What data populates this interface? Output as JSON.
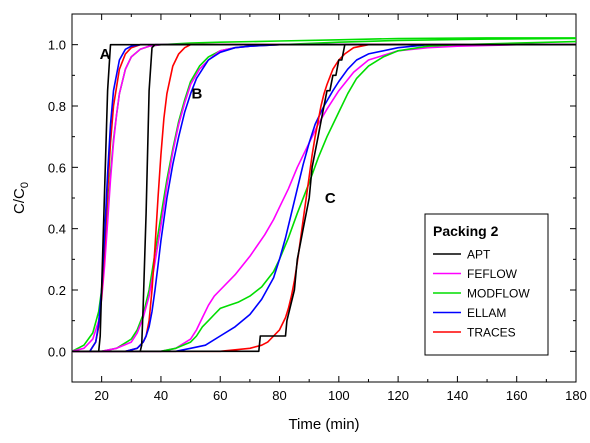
{
  "chart_data": {
    "type": "line",
    "xlabel": "Time (min)",
    "ylabel_main": "C/C",
    "ylabel_sub": "0",
    "xlim": [
      10,
      180
    ],
    "ylim": [
      -0.1,
      1.1
    ],
    "x_ticks": [
      20,
      40,
      60,
      80,
      100,
      120,
      140,
      160,
      180
    ],
    "y_ticks": [
      0.0,
      0.2,
      0.4,
      0.6,
      0.8,
      1.0
    ],
    "y_tick_labels": [
      "0.0",
      "0.2",
      "0.4",
      "0.6",
      "0.8",
      "1.0"
    ],
    "grid": false,
    "legend": {
      "title": "Packing 2",
      "placement": "bottom-right",
      "entries": [
        "APT",
        "FEFLOW",
        "MODFLOW",
        "ELLAM",
        "TRACES"
      ]
    },
    "annotations": [
      {
        "text": "A",
        "x": 21,
        "y": 0.97
      },
      {
        "text": "B",
        "x": 52,
        "y": 0.84
      },
      {
        "text": "C",
        "x": 97,
        "y": 0.5
      }
    ],
    "colors": {
      "APT": "#000000",
      "FEFLOW": "#ff00ff",
      "MODFLOW": "#00dd00",
      "ELLAM": "#0000ff",
      "TRACES": "#ff0000"
    },
    "series": [
      {
        "name": "MODFLOW",
        "group": "A",
        "x": [
          10,
          14,
          17,
          19,
          20,
          21,
          22,
          23,
          24,
          25,
          26,
          28,
          30,
          33,
          36,
          40,
          50,
          60,
          80,
          100,
          120,
          150,
          180
        ],
        "y": [
          0,
          0.02,
          0.06,
          0.13,
          0.2,
          0.32,
          0.45,
          0.58,
          0.69,
          0.77,
          0.84,
          0.92,
          0.96,
          0.985,
          0.995,
          1.0,
          1.005,
          1.008,
          1.012,
          1.016,
          1.02,
          1.022,
          1.022
        ]
      },
      {
        "name": "FEFLOW",
        "group": "A",
        "x": [
          10,
          14,
          17,
          19,
          20,
          21,
          22,
          23,
          24,
          25,
          26,
          28,
          30,
          33,
          36,
          40,
          180
        ],
        "y": [
          0,
          0.01,
          0.04,
          0.1,
          0.17,
          0.28,
          0.42,
          0.56,
          0.68,
          0.77,
          0.84,
          0.92,
          0.96,
          0.985,
          0.995,
          1.0,
          1.0
        ]
      },
      {
        "name": "TRACES",
        "group": "A",
        "x": [
          10,
          16,
          18,
          19,
          20,
          21,
          22,
          23,
          24,
          26,
          28,
          30,
          33,
          36,
          180
        ],
        "y": [
          0,
          0.0,
          0.03,
          0.08,
          0.18,
          0.34,
          0.52,
          0.68,
          0.8,
          0.92,
          0.97,
          0.99,
          1.0,
          1.0,
          1.0
        ]
      },
      {
        "name": "ELLAM",
        "group": "A",
        "x": [
          10,
          16,
          18,
          19,
          20,
          21,
          22,
          23,
          24,
          26,
          28,
          30,
          33,
          36,
          180
        ],
        "y": [
          0,
          0.0,
          0.03,
          0.09,
          0.2,
          0.38,
          0.58,
          0.74,
          0.85,
          0.95,
          0.985,
          0.995,
          1.0,
          1.0,
          1.0
        ]
      },
      {
        "name": "APT",
        "group": "A",
        "x": [
          10,
          19,
          19.5,
          22,
          23,
          180
        ],
        "y": [
          0,
          0,
          0.05,
          0.85,
          1.0,
          1.0
        ]
      },
      {
        "name": "MODFLOW",
        "group": "B",
        "x": [
          10,
          20,
          25,
          30,
          32,
          34,
          36,
          38,
          40,
          42,
          44,
          46,
          48,
          50,
          53,
          56,
          60,
          65,
          70,
          80,
          100,
          120,
          150,
          180
        ],
        "y": [
          0,
          0.0,
          0.01,
          0.04,
          0.07,
          0.12,
          0.2,
          0.32,
          0.44,
          0.56,
          0.66,
          0.75,
          0.82,
          0.88,
          0.93,
          0.96,
          0.98,
          0.99,
          0.995,
          1.0,
          1.008,
          1.014,
          1.018,
          1.02
        ]
      },
      {
        "name": "FEFLOW",
        "group": "B",
        "x": [
          10,
          20,
          25,
          30,
          32,
          34,
          36,
          38,
          40,
          42,
          44,
          46,
          48,
          50,
          53,
          56,
          60,
          65,
          70,
          80,
          180
        ],
        "y": [
          0,
          0.0,
          0.01,
          0.03,
          0.06,
          0.11,
          0.18,
          0.29,
          0.41,
          0.54,
          0.65,
          0.74,
          0.81,
          0.87,
          0.92,
          0.95,
          0.98,
          0.99,
          0.995,
          1.0,
          1.0
        ]
      },
      {
        "name": "TRACES",
        "group": "B",
        "x": [
          10,
          28,
          32,
          34,
          35,
          36,
          37,
          38,
          39,
          40,
          41,
          42,
          44,
          46,
          48,
          50,
          55,
          180
        ],
        "y": [
          0,
          0,
          0.01,
          0.03,
          0.05,
          0.1,
          0.2,
          0.34,
          0.5,
          0.64,
          0.76,
          0.84,
          0.93,
          0.97,
          0.99,
          1.0,
          1.0,
          1.0
        ]
      },
      {
        "name": "ELLAM",
        "group": "B",
        "x": [
          10,
          28,
          32,
          34,
          35,
          36,
          37,
          38,
          39,
          40,
          42,
          44,
          46,
          48,
          50,
          52,
          54,
          56,
          60,
          65,
          70,
          80,
          180
        ],
        "y": [
          0,
          0,
          0.01,
          0.03,
          0.05,
          0.08,
          0.13,
          0.2,
          0.28,
          0.36,
          0.5,
          0.61,
          0.7,
          0.78,
          0.84,
          0.89,
          0.92,
          0.95,
          0.975,
          0.99,
          0.995,
          1.0,
          1.0
        ]
      },
      {
        "name": "APT",
        "group": "B",
        "x": [
          10,
          33,
          33.5,
          34,
          35,
          36,
          37,
          38,
          180
        ],
        "y": [
          0,
          0,
          0.02,
          0.15,
          0.45,
          0.85,
          0.99,
          1.0,
          1.0
        ]
      },
      {
        "name": "FEFLOW",
        "group": "C",
        "x": [
          10,
          40,
          45,
          50,
          52,
          54,
          56,
          58,
          60,
          65,
          70,
          75,
          78,
          80,
          83,
          86,
          90,
          93,
          96,
          100,
          105,
          110,
          120,
          130,
          140,
          160,
          180
        ],
        "y": [
          0,
          0.0,
          0.01,
          0.04,
          0.07,
          0.11,
          0.15,
          0.18,
          0.2,
          0.25,
          0.31,
          0.38,
          0.43,
          0.47,
          0.53,
          0.6,
          0.68,
          0.74,
          0.79,
          0.85,
          0.91,
          0.95,
          0.98,
          0.99,
          0.995,
          1.0,
          1.0
        ]
      },
      {
        "name": "MODFLOW",
        "group": "C",
        "x": [
          10,
          40,
          45,
          50,
          52,
          54,
          56,
          58,
          60,
          63,
          66,
          70,
          74,
          78,
          80,
          83,
          86,
          90,
          93,
          96,
          100,
          103,
          106,
          110,
          115,
          120,
          130,
          140,
          160,
          180
        ],
        "y": [
          0,
          0.0,
          0.01,
          0.03,
          0.05,
          0.08,
          0.1,
          0.12,
          0.14,
          0.15,
          0.16,
          0.18,
          0.21,
          0.26,
          0.3,
          0.37,
          0.45,
          0.55,
          0.63,
          0.7,
          0.78,
          0.84,
          0.89,
          0.93,
          0.96,
          0.98,
          0.995,
          1.0,
          1.005,
          1.01
        ]
      },
      {
        "name": "ELLAM",
        "group": "C",
        "x": [
          10,
          45,
          50,
          55,
          60,
          65,
          70,
          74,
          78,
          80,
          82,
          84,
          86,
          88,
          90,
          92,
          95,
          98,
          100,
          103,
          106,
          110,
          120,
          130,
          180
        ],
        "y": [
          0,
          0,
          0.01,
          0.02,
          0.05,
          0.08,
          0.12,
          0.17,
          0.24,
          0.3,
          0.37,
          0.45,
          0.53,
          0.61,
          0.68,
          0.74,
          0.8,
          0.85,
          0.88,
          0.92,
          0.95,
          0.97,
          0.99,
          1.0,
          1.0
        ]
      },
      {
        "name": "TRACES",
        "group": "C",
        "x": [
          10,
          60,
          65,
          70,
          74,
          76,
          78,
          80,
          82,
          83,
          84,
          85,
          86,
          87,
          88,
          89,
          90,
          91,
          92,
          93,
          94,
          95,
          96,
          98,
          100,
          102,
          105,
          110,
          115,
          180
        ],
        "y": [
          0,
          0,
          0.005,
          0.01,
          0.02,
          0.03,
          0.05,
          0.07,
          0.11,
          0.14,
          0.18,
          0.23,
          0.29,
          0.36,
          0.43,
          0.5,
          0.57,
          0.64,
          0.7,
          0.75,
          0.8,
          0.84,
          0.87,
          0.92,
          0.95,
          0.97,
          0.99,
          1.0,
          1.0,
          1.0
        ]
      },
      {
        "name": "APT",
        "group": "C",
        "x": [
          10,
          73,
          73.5,
          82,
          82.5,
          85,
          86,
          87,
          88,
          89,
          90,
          91,
          92,
          93,
          94,
          95,
          96,
          97,
          98,
          99,
          100,
          101,
          102,
          103,
          180
        ],
        "y": [
          0,
          0,
          0.05,
          0.05,
          0.1,
          0.2,
          0.3,
          0.35,
          0.4,
          0.45,
          0.5,
          0.6,
          0.65,
          0.7,
          0.75,
          0.8,
          0.85,
          0.85,
          0.9,
          0.9,
          0.95,
          0.95,
          1.0,
          1.0,
          1.0
        ]
      }
    ]
  }
}
